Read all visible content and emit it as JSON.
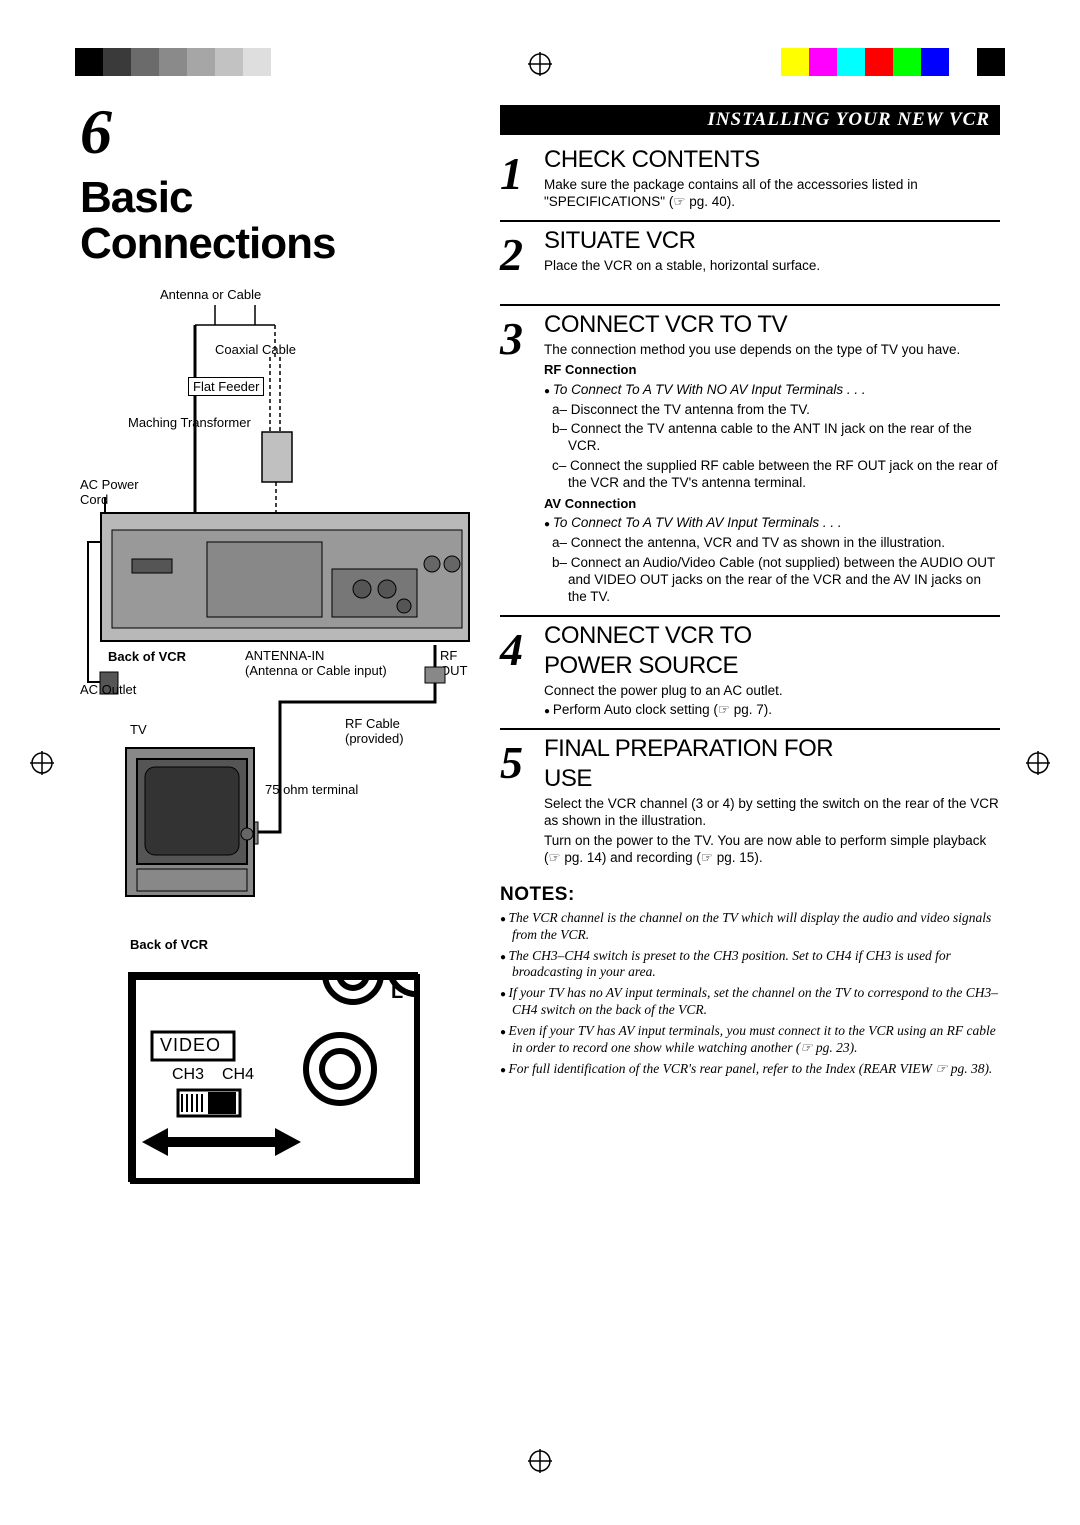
{
  "colorbar_left": [
    "#000000",
    "#3a3a3a",
    "#6b6b6b",
    "#8a8a8a",
    "#a6a6a6",
    "#c2c2c2",
    "#dedede",
    "#ffffff"
  ],
  "colorbar_right": [
    "#ffff00",
    "#ff00ff",
    "#00ffff",
    "#ff0000",
    "#00ff00",
    "#0000ff",
    "#ffffff",
    "#000000"
  ],
  "page_number": "6",
  "main_title_line1": "Basic",
  "main_title_line2": "Connections",
  "section_header": "INSTALLING YOUR NEW VCR",
  "diagram_upper": {
    "antenna_cable": "Antenna or Cable",
    "coaxial": "Coaxial Cable",
    "flat_feeder": "Flat Feeder",
    "matching_transformer": "Maching Transformer",
    "ac_power_cord_1": "AC Power",
    "ac_power_cord_2": "Cord",
    "back_of_vcr": "Back of VCR",
    "ac_outlet": "AC Outlet",
    "antenna_in_1": "ANTENNA-IN",
    "antenna_in_2": "(Antenna or Cable input)",
    "rf_out_1": "RF",
    "rf_out_2": "OUT",
    "tv": "TV",
    "rf_cable_1": "RF Cable",
    "rf_cable_2": "(provided)",
    "ohm_terminal": "75 ohm terminal"
  },
  "diagram_lower": {
    "back_of_vcr": "Back of VCR",
    "video": "VIDEO",
    "ch3": "CH3",
    "ch4": "CH4",
    "L": "L"
  },
  "steps": [
    {
      "num": "1",
      "title": "CHECK CONTENTS",
      "body": "Make sure the package contains all of the accessories listed in \"SPECIFICATIONS\" (☞ pg. 40)."
    },
    {
      "num": "2",
      "title": "SITUATE VCR",
      "body": "Place the VCR on a stable, horizontal surface."
    },
    {
      "num": "3",
      "title": "CONNECT VCR TO TV",
      "body": "The connection method you use depends on the type of TV you have.",
      "rf_head": "RF Connection",
      "rf_intro": "To Connect To A TV With NO AV Input Terminals . . .",
      "rf_a": "a– Disconnect the TV antenna from the TV.",
      "rf_b": "b– Connect the TV antenna cable to the ANT IN jack on the rear of the VCR.",
      "rf_c": "c– Connect the supplied RF cable between the RF OUT jack on the rear of the VCR and the TV's antenna terminal.",
      "av_head": "AV Connection",
      "av_intro": "To Connect To A TV With AV Input Terminals . . .",
      "av_a": "a– Connect the antenna, VCR and TV as shown in the illustration.",
      "av_b": "b– Connect an Audio/Video Cable (not supplied) between the AUDIO OUT and VIDEO OUT jacks on the rear of the VCR and the AV IN jacks on the TV."
    },
    {
      "num": "4",
      "title_l1": "CONNECT VCR TO",
      "title_l2": "POWER SOURCE",
      "body": "Connect the power plug to an AC outlet.",
      "bullet": "Perform Auto clock setting (☞ pg. 7)."
    },
    {
      "num": "5",
      "title_l1": "FINAL PREPARATION FOR",
      "title_l2": "USE",
      "body": "Select the VCR channel (3 or 4) by setting the switch on the rear of the VCR as shown in the illustration.",
      "body2": "Turn on the power to the TV. You are now able to perform simple playback (☞ pg. 14) and recording (☞ pg. 15)."
    }
  ],
  "notes_title": "NOTES:",
  "notes": [
    "The VCR channel is the channel on the TV which will display the audio and video signals from the VCR.",
    "The CH3–CH4 switch is preset to the CH3 position. Set to CH4 if CH3 is used for broadcasting in your area.",
    "If your TV has no AV input terminals, set the channel on the TV to correspond to the CH3–CH4 switch on the back of the VCR.",
    "Even if your TV has AV input terminals, you must connect it to the VCR using an RF cable in order to record one show while watching another (☞ pg. 23).",
    "For full identification of the VCR's rear panel, refer to the Index (REAR VIEW ☞ pg. 38)."
  ]
}
